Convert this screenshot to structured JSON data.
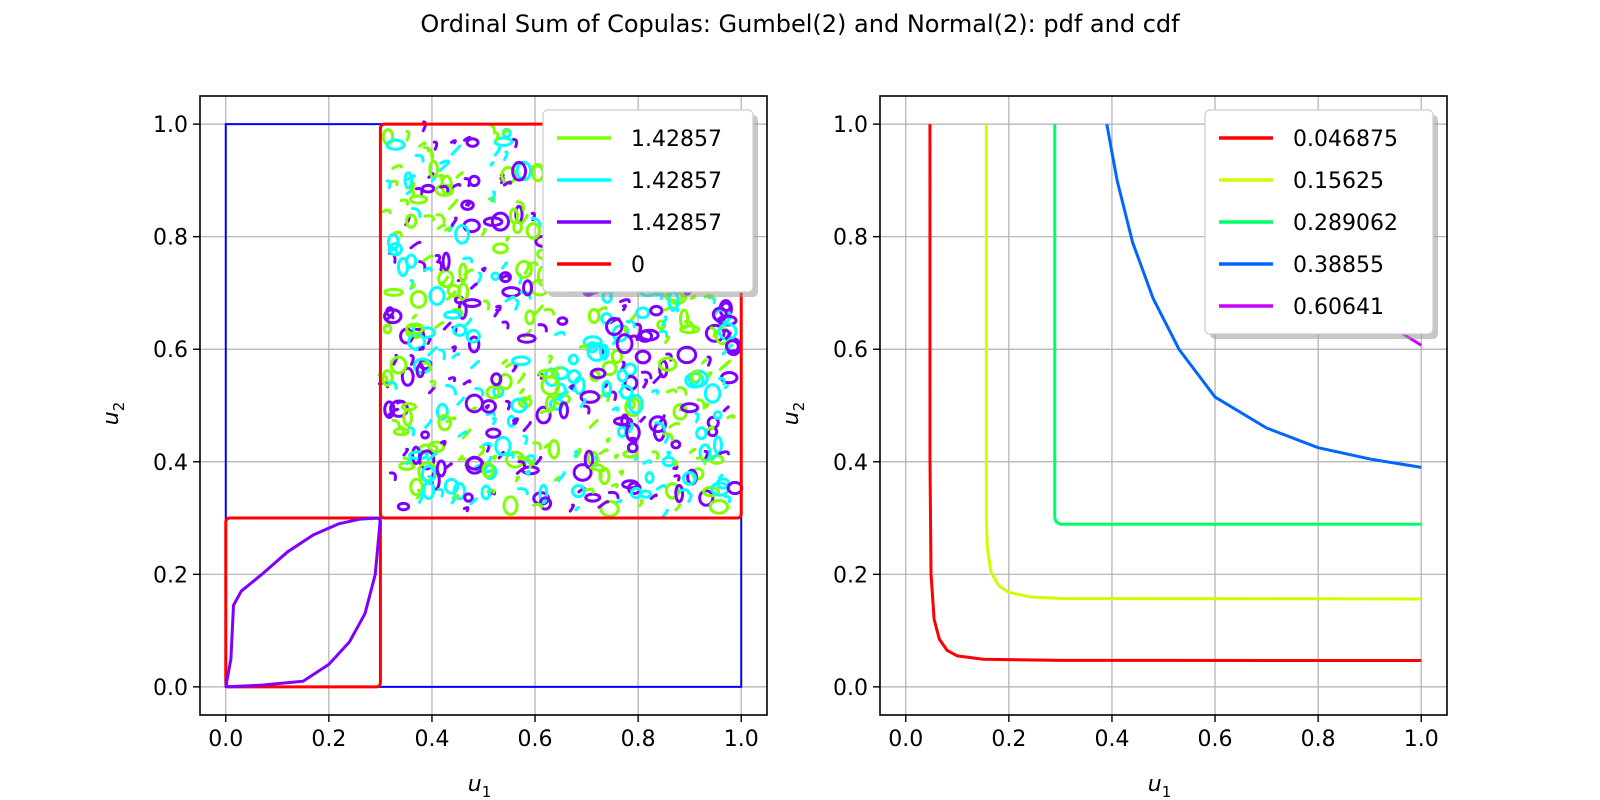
{
  "title": "Ordinal Sum of Copulas: Gumbel(2) and Normal(2): pdf and cdf",
  "chart_data": [
    {
      "type": "contour",
      "xlabel_base": "u",
      "xlabel_sub": "1",
      "ylabel_base": "u",
      "ylabel_sub": "2",
      "xlim": [
        -0.05,
        1.05
      ],
      "ylim": [
        -0.05,
        1.05
      ],
      "xticks": [
        "0.0",
        "0.2",
        "0.4",
        "0.6",
        "0.8",
        "1.0"
      ],
      "yticks": [
        "0.0",
        "0.2",
        "0.4",
        "0.6",
        "0.8",
        "1.0"
      ],
      "grid": true,
      "legend_placement": "top-right",
      "domain_box": {
        "x": [
          0,
          1
        ],
        "y": [
          0,
          1
        ],
        "color": "#0000ff"
      },
      "blocks": [
        {
          "x": [
            0.0,
            0.3
          ],
          "y": [
            0.0,
            0.3
          ],
          "color": "#ff0000"
        },
        {
          "x": [
            0.3,
            1.0
          ],
          "y": [
            0.3,
            1.0
          ],
          "color": "#ff0000"
        }
      ],
      "series": [
        {
          "name": "1.42857",
          "color": "#7fff00"
        },
        {
          "name": "1.42857",
          "color": "#00ffff"
        },
        {
          "name": "1.42857",
          "color": "#7f00ff"
        },
        {
          "name": "0",
          "color": "#ff0000"
        }
      ],
      "curves": [
        {
          "color": "#7f00ff",
          "points": [
            [
              0.3,
              0.3
            ],
            [
              0.26,
              0.298
            ],
            [
              0.22,
              0.29
            ],
            [
              0.17,
              0.27
            ],
            [
              0.12,
              0.24
            ],
            [
              0.07,
              0.2
            ],
            [
              0.03,
              0.17
            ],
            [
              0.015,
              0.145
            ],
            [
              0.01,
              0.05
            ],
            [
              0.0,
              0.0
            ]
          ]
        },
        {
          "color": "#7f00ff",
          "points": [
            [
              0.0,
              0.0
            ],
            [
              0.07,
              0.003
            ],
            [
              0.15,
              0.01
            ],
            [
              0.2,
              0.04
            ],
            [
              0.24,
              0.08
            ],
            [
              0.27,
              0.13
            ],
            [
              0.29,
              0.2
            ],
            [
              0.3,
              0.3
            ]
          ]
        }
      ]
    },
    {
      "type": "line",
      "xlabel_base": "u",
      "xlabel_sub": "1",
      "ylabel_base": "u",
      "ylabel_sub": "2",
      "xlim": [
        -0.05,
        1.05
      ],
      "ylim": [
        -0.05,
        1.05
      ],
      "xticks": [
        "0.0",
        "0.2",
        "0.4",
        "0.6",
        "0.8",
        "1.0"
      ],
      "yticks": [
        "0.0",
        "0.2",
        "0.4",
        "0.6",
        "0.8",
        "1.0"
      ],
      "grid": true,
      "legend_placement": "top-right",
      "series": [
        {
          "name": "0.046875",
          "color": "#ff0000",
          "points": [
            [
              0.046875,
              1.0
            ],
            [
              0.047,
              0.4
            ],
            [
              0.049,
              0.2
            ],
            [
              0.055,
              0.12
            ],
            [
              0.065,
              0.085
            ],
            [
              0.08,
              0.065
            ],
            [
              0.1,
              0.055
            ],
            [
              0.15,
              0.049
            ],
            [
              0.3,
              0.047
            ],
            [
              1.0,
              0.046875
            ]
          ]
        },
        {
          "name": "0.15625",
          "color": "#ccff00",
          "points": [
            [
              0.15625,
              1.0
            ],
            [
              0.1563,
              0.3
            ],
            [
              0.158,
              0.25
            ],
            [
              0.165,
              0.205
            ],
            [
              0.18,
              0.18
            ],
            [
              0.2,
              0.168
            ],
            [
              0.24,
              0.16
            ],
            [
              0.3,
              0.157
            ],
            [
              1.0,
              0.15625
            ]
          ]
        },
        {
          "name": "0.289062",
          "color": "#00ff66",
          "points": [
            [
              0.289062,
              1.0
            ],
            [
              0.289062,
              0.3
            ],
            [
              0.292,
              0.293
            ],
            [
              0.3,
              0.289062
            ],
            [
              1.0,
              0.289062
            ]
          ]
        },
        {
          "name": "0.38855",
          "color": "#0066ff",
          "points": [
            [
              0.39,
              1.0
            ],
            [
              0.41,
              0.9
            ],
            [
              0.44,
              0.79
            ],
            [
              0.48,
              0.69
            ],
            [
              0.53,
              0.6
            ],
            [
              0.6,
              0.515
            ],
            [
              0.7,
              0.46
            ],
            [
              0.8,
              0.425
            ],
            [
              0.9,
              0.405
            ],
            [
              1.0,
              0.39
            ]
          ]
        },
        {
          "name": "0.60641",
          "color": "#cc00ff",
          "points": [
            [
              0.93,
              0.65
            ],
            [
              0.96,
              0.63
            ],
            [
              1.0,
              0.607
            ]
          ]
        }
      ]
    }
  ]
}
